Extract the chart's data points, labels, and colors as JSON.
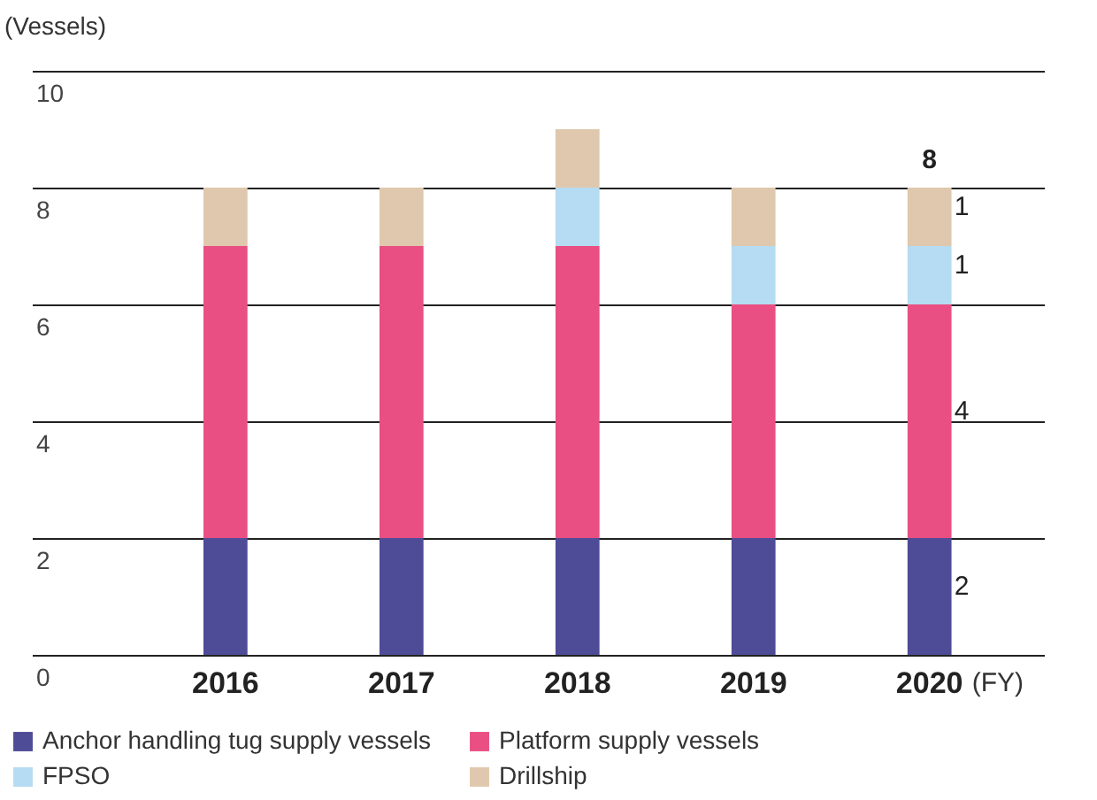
{
  "chart_data": {
    "type": "bar",
    "stacked": true,
    "ylabel": "(Vessels)",
    "xlabel": "(FY)",
    "categories": [
      "2016",
      "2017",
      "2018",
      "2019",
      "2020"
    ],
    "series": [
      {
        "name": "Anchor handling tug supply vessels",
        "color": "#4e4b97",
        "values": [
          2,
          2,
          2,
          2,
          2
        ],
        "value_labels": [
          null,
          null,
          null,
          null,
          "2"
        ]
      },
      {
        "name": "Platform supply vessels",
        "color": "#e94f82",
        "values": [
          5,
          5,
          5,
          4,
          4
        ],
        "value_labels": [
          null,
          null,
          null,
          null,
          "4"
        ]
      },
      {
        "name": "FPSO",
        "color": "#b5dcf2",
        "values": [
          0,
          0,
          1,
          1,
          1
        ],
        "value_labels": [
          null,
          null,
          null,
          null,
          "1"
        ]
      },
      {
        "name": "Drillship",
        "color": "#dfc8ad",
        "values": [
          1,
          1,
          1,
          1,
          1
        ],
        "value_labels": [
          null,
          null,
          null,
          null,
          "1"
        ]
      }
    ],
    "totals": [
      null,
      null,
      null,
      null,
      "8"
    ],
    "ylim": [
      0,
      10
    ],
    "yticks": [
      0,
      2,
      4,
      6,
      8,
      10
    ],
    "grid": true,
    "legend": "bottom"
  }
}
